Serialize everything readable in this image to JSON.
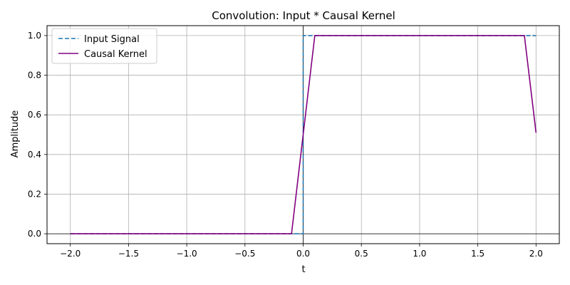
{
  "chart_data": {
    "type": "line",
    "title": "Convolution: Input * Causal Kernel",
    "xlabel": "t",
    "ylabel": "Amplitude",
    "xlim": [
      -2.2,
      2.2
    ],
    "ylim": [
      -0.05,
      1.05
    ],
    "xticks": [
      -2.0,
      -1.5,
      -1.0,
      -0.5,
      0.0,
      0.5,
      1.0,
      1.5,
      2.0
    ],
    "xtick_labels": [
      "−2.0",
      "−1.5",
      "−1.0",
      "−0.5",
      "0.0",
      "0.5",
      "1.0",
      "1.5",
      "2.0"
    ],
    "yticks": [
      0.0,
      0.2,
      0.4,
      0.6,
      0.8,
      1.0
    ],
    "ytick_labels": [
      "0.0",
      "0.2",
      "0.4",
      "0.6",
      "0.8",
      "1.0"
    ],
    "grid": true,
    "legend": "top-left",
    "reference_lines": {
      "horizontal_y": 0,
      "vertical_x": 0,
      "color": "#000000"
    },
    "series": [
      {
        "name": "Input Signal",
        "color": "#1f77b4",
        "style": "dashed",
        "x": [
          -2.0,
          -0.1,
          0.0,
          0.0,
          0.1,
          2.0
        ],
        "y": [
          0.0,
          0.0,
          0.0,
          1.0,
          1.0,
          1.0
        ]
      },
      {
        "name": "Causal Kernel",
        "color": "#800080",
        "style": "solid",
        "x": [
          -2.0,
          -0.1,
          0.1,
          1.9,
          2.0
        ],
        "y": [
          0.0,
          0.0,
          1.0,
          1.0,
          0.51
        ]
      }
    ]
  }
}
